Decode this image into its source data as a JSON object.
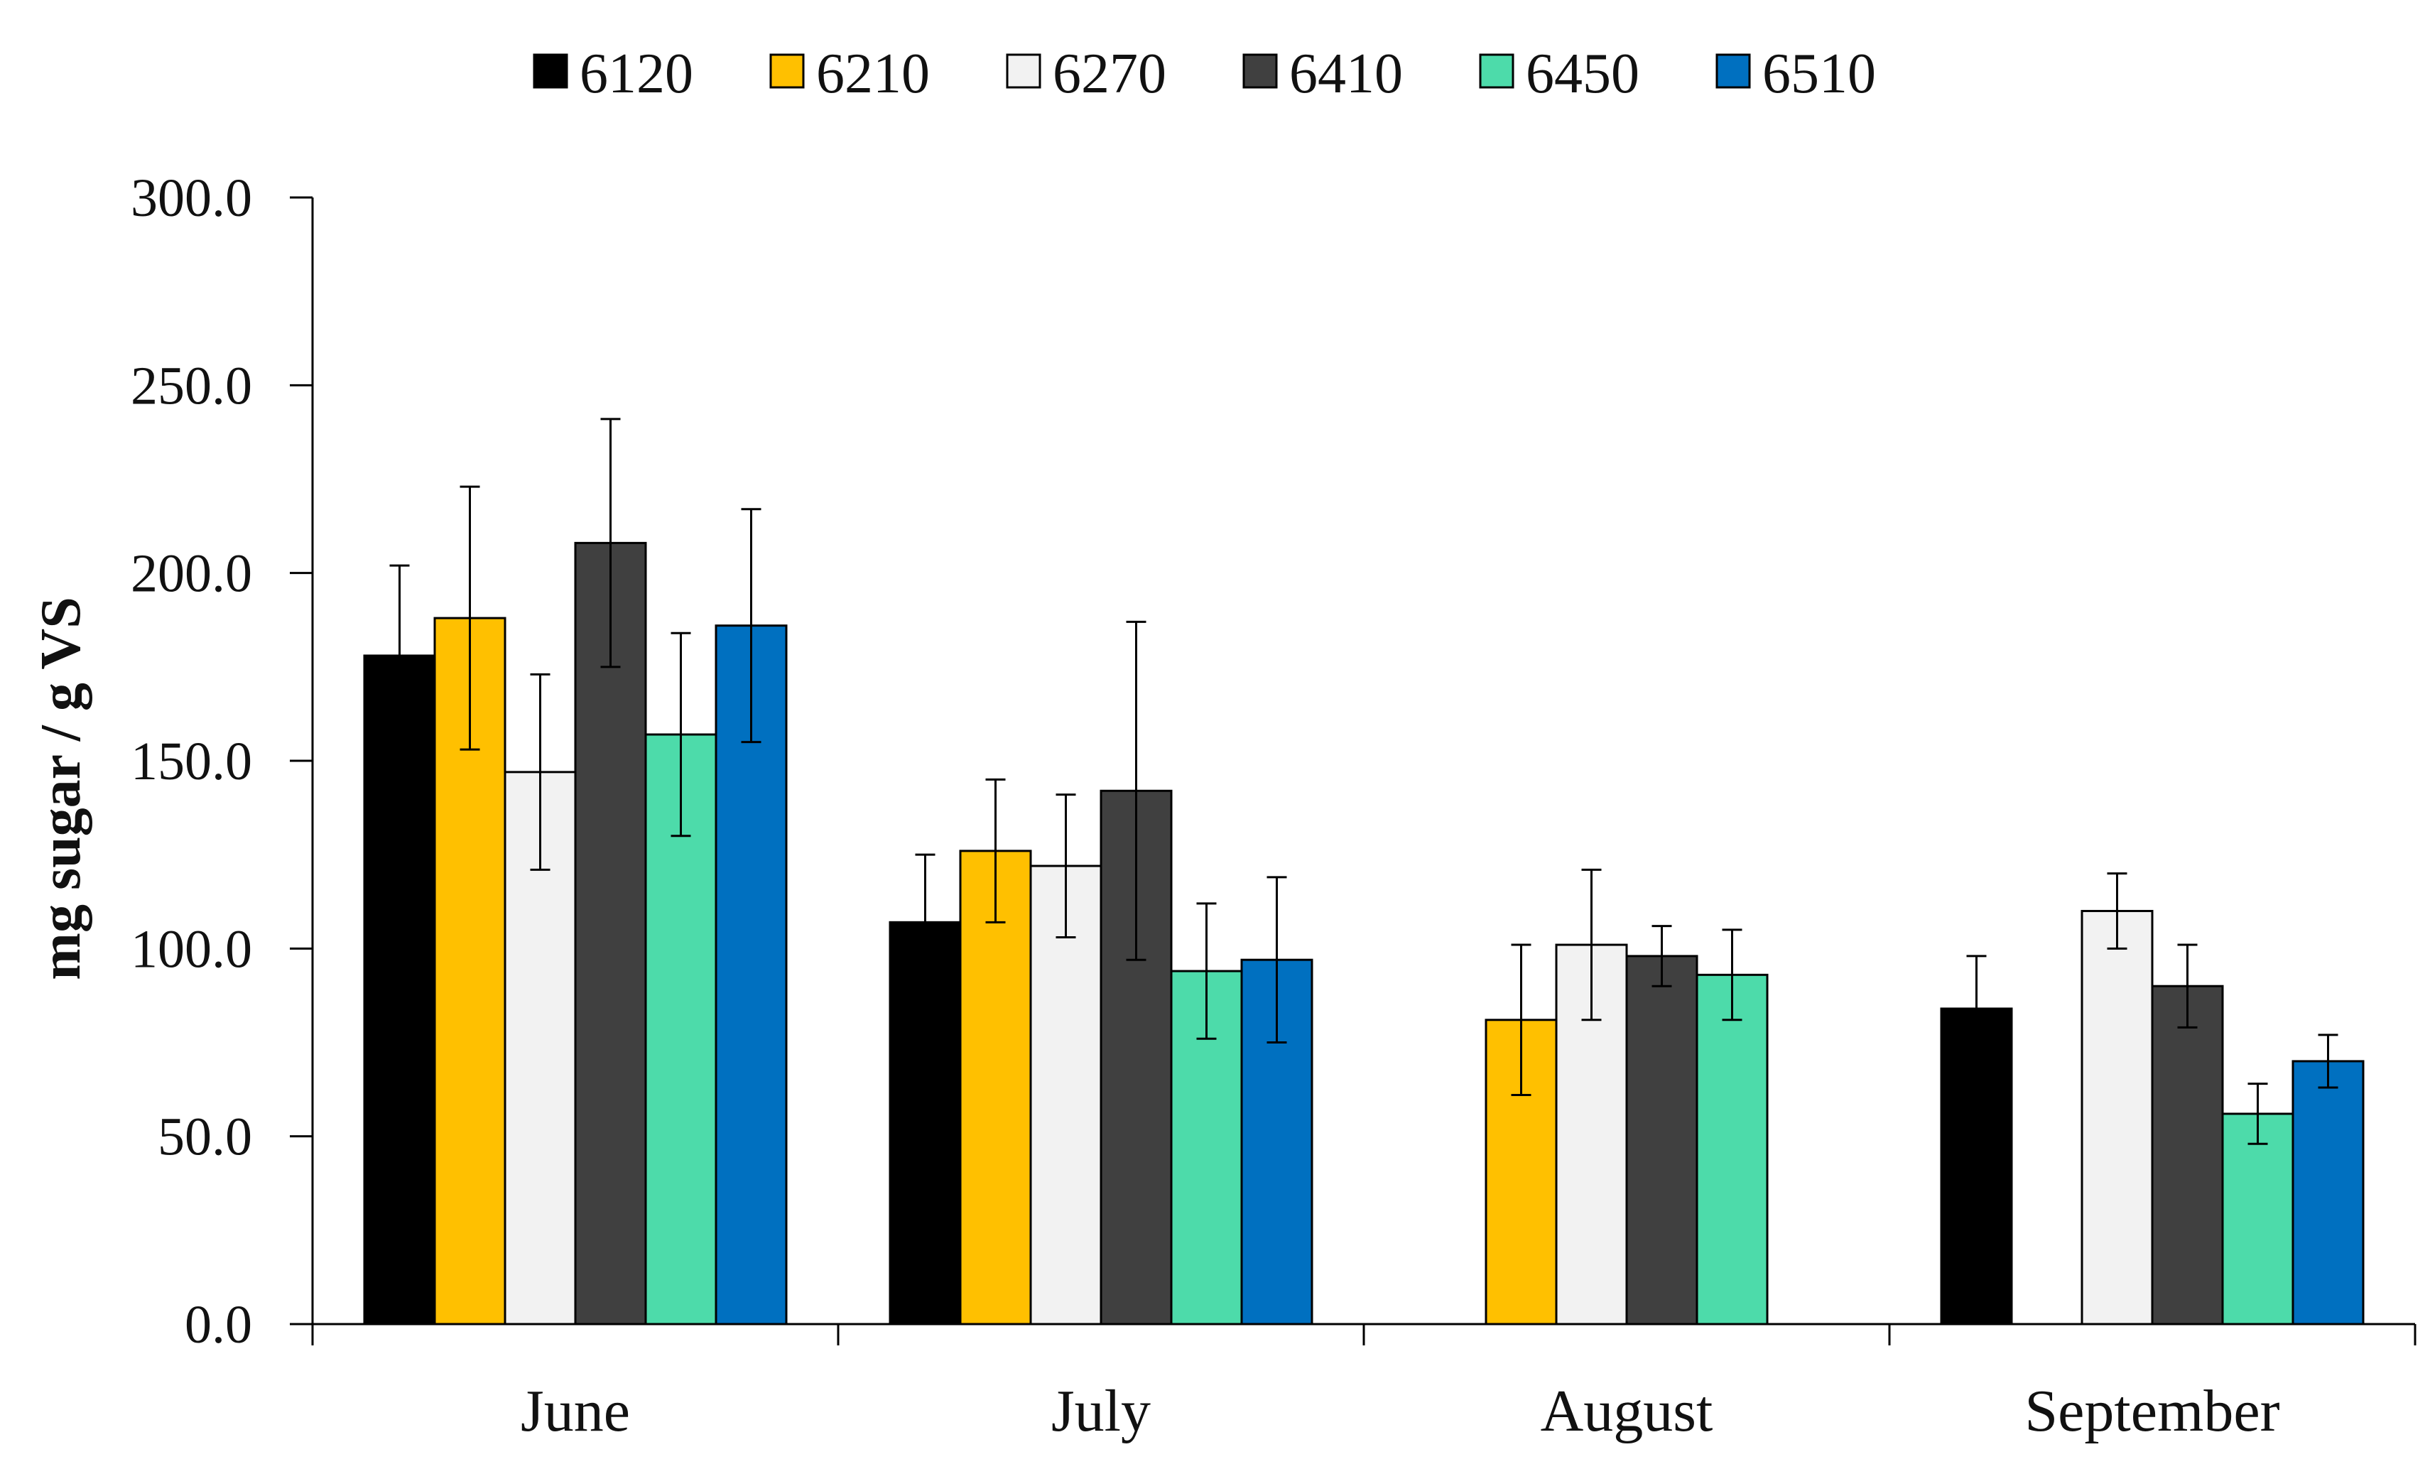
{
  "chart_data": {
    "type": "bar",
    "title": "",
    "xlabel": "",
    "ylabel": "mg sugar / g VS",
    "ylim": [
      0,
      300
    ],
    "yticks": [
      0,
      50,
      100,
      150,
      200,
      250,
      300
    ],
    "ytick_labels": [
      "0.0",
      "50.0",
      "100.0",
      "150.0",
      "200.0",
      "250.0",
      "300.0"
    ],
    "categories": [
      "June",
      "July",
      "August",
      "September"
    ],
    "legend_position": "top-center",
    "series": [
      {
        "name": "6120",
        "color": "#000000",
        "values": [
          178,
          107,
          null,
          84
        ],
        "errors": [
          24,
          18,
          null,
          14
        ]
      },
      {
        "name": "6210",
        "color": "#FFC000",
        "values": [
          188,
          126,
          81,
          null
        ],
        "errors": [
          35,
          19,
          20,
          null
        ]
      },
      {
        "name": "6270",
        "color": "#F2F2F2",
        "values": [
          147,
          122,
          101,
          110
        ],
        "errors": [
          26,
          19,
          20,
          10
        ]
      },
      {
        "name": "6410",
        "color": "#404040",
        "values": [
          208,
          142,
          98,
          90
        ],
        "errors": [
          33,
          45,
          8,
          11
        ]
      },
      {
        "name": "6450",
        "color": "#4DDBAA",
        "values": [
          157,
          94,
          93,
          56
        ],
        "errors": [
          27,
          18,
          12,
          8
        ]
      },
      {
        "name": "6510",
        "color": "#0070C0",
        "values": [
          186,
          97,
          null,
          70
        ],
        "errors": [
          31,
          22,
          null,
          7
        ]
      }
    ]
  }
}
